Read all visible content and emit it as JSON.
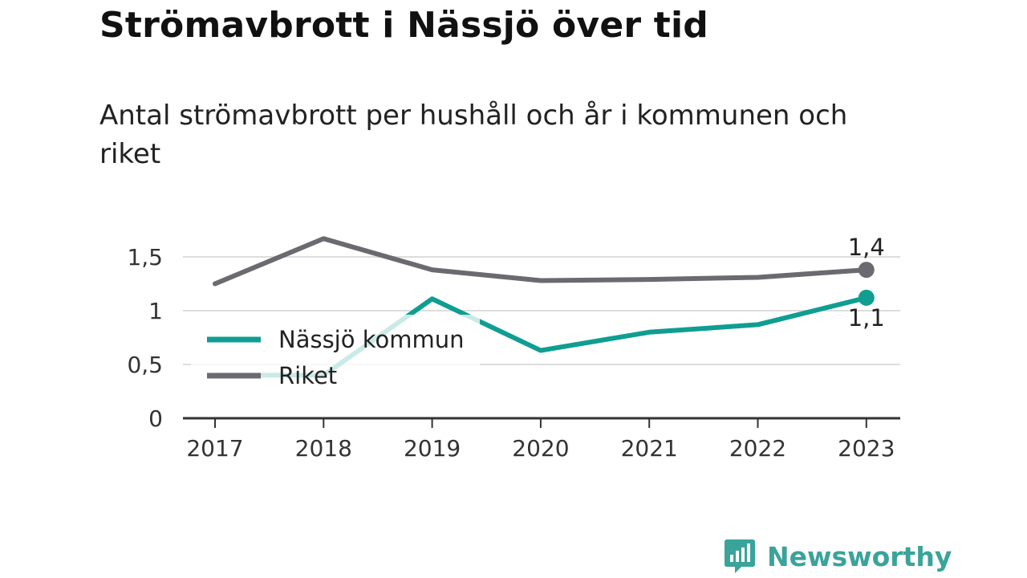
{
  "header": {
    "title": "Strömavbrott i Nässjö över tid",
    "subtitle": "Antal strömavbrott per hushåll och år i kommunen och riket"
  },
  "chart_data": {
    "type": "line",
    "title": "Strömavbrott i Nässjö över tid",
    "subtitle": "Antal strömavbrott per hushåll och år i kommunen och riket",
    "xlabel": "",
    "ylabel": "",
    "categories": [
      "2017",
      "2018",
      "2019",
      "2020",
      "2021",
      "2022",
      "2023"
    ],
    "ylim": [
      0,
      1.8
    ],
    "yticks": [
      {
        "value": 0,
        "label": "0"
      },
      {
        "value": 0.5,
        "label": "0,5"
      },
      {
        "value": 1,
        "label": "1"
      },
      {
        "value": 1.5,
        "label": "1,5"
      }
    ],
    "grid": true,
    "legend_position": "bottom-left inside plot",
    "series": [
      {
        "name": "Nässjö kommun",
        "color": "#0f9e91",
        "values": [
          0.4,
          0.4,
          1.11,
          0.63,
          0.8,
          0.87,
          1.12
        ]
      },
      {
        "name": "Riket",
        "color": "#6b6a70",
        "values": [
          1.25,
          1.67,
          1.38,
          1.28,
          1.29,
          1.31,
          1.38
        ]
      }
    ],
    "annotations": [
      {
        "series": "Riket",
        "category": "2023",
        "label": "1,4"
      },
      {
        "series": "Nässjö kommun",
        "category": "2023",
        "label": "1,1"
      }
    ]
  },
  "branding": {
    "logo_text": "Newsworthy",
    "logo_icon": "bar-chart-bubble-icon",
    "logo_color": "#3aa39a"
  }
}
